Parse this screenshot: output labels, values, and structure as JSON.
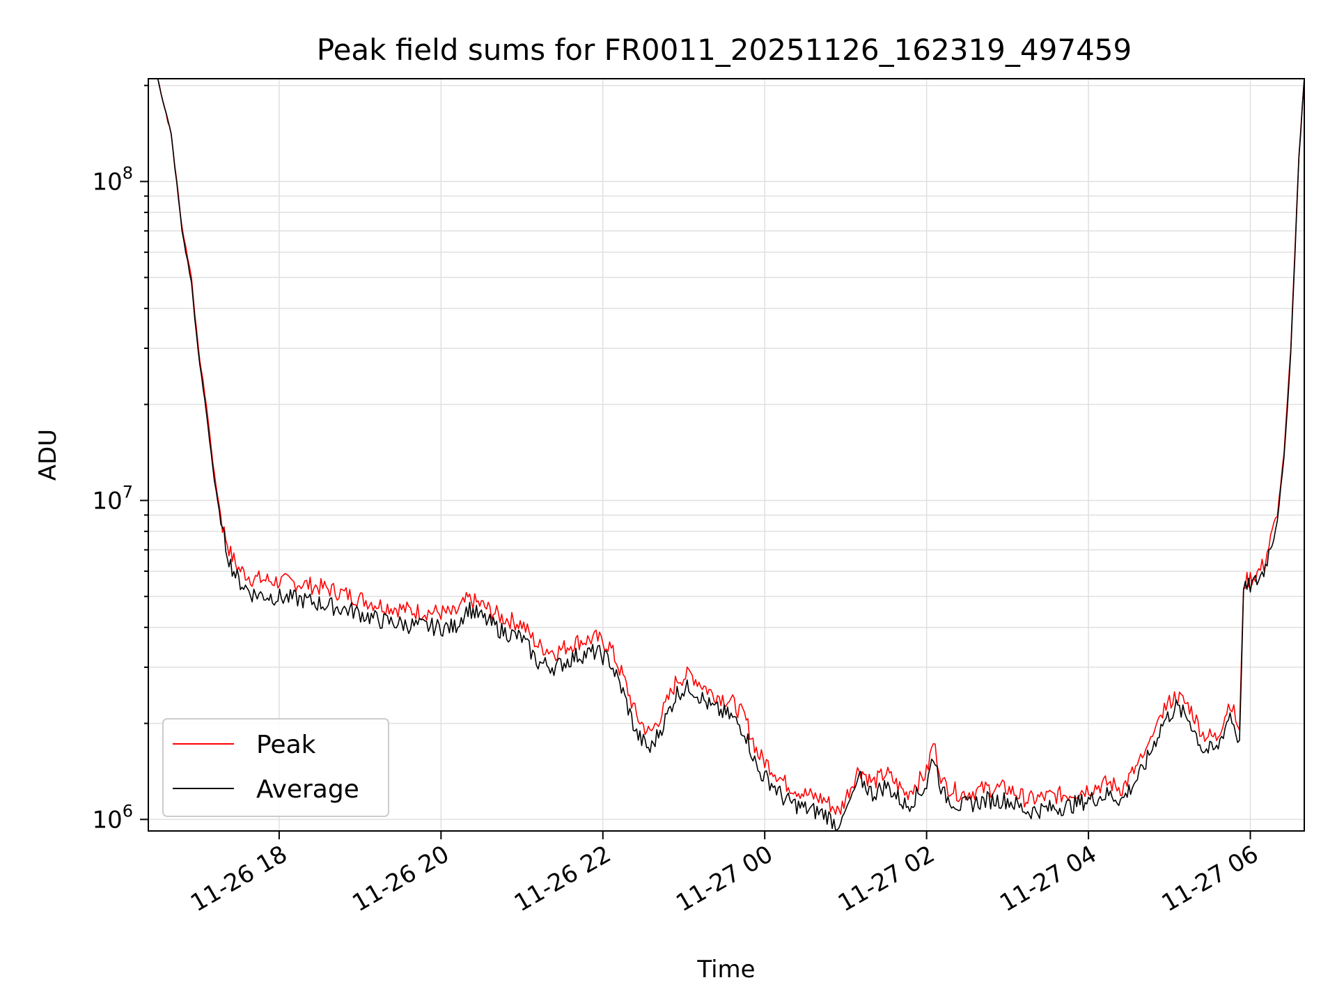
{
  "chart_data": {
    "type": "line",
    "title": "Peak field sums for FR0011_20251126_162319_497459",
    "xlabel": "Time",
    "ylabel": "ADU",
    "y_scale": "log",
    "xlim": [
      "2025-11-26 16:23",
      "2025-11-27 06:40"
    ],
    "ylim": [
      920000,
      210000000
    ],
    "grid": true,
    "legend_position": "lower-left",
    "x_ticks": [
      {
        "label": "11-26 18",
        "t": "2025-11-26 18:00"
      },
      {
        "label": "11-26 20",
        "t": "2025-11-26 20:00"
      },
      {
        "label": "11-26 22",
        "t": "2025-11-26 22:00"
      },
      {
        "label": "11-27 00",
        "t": "2025-11-27 00:00"
      },
      {
        "label": "11-27 02",
        "t": "2025-11-27 02:00"
      },
      {
        "label": "11-27 04",
        "t": "2025-11-27 04:00"
      },
      {
        "label": "11-27 06",
        "t": "2025-11-27 06:00"
      }
    ],
    "y_ticks": [
      {
        "base": "10",
        "exp": "6",
        "value": 1000000
      },
      {
        "base": "10",
        "exp": "7",
        "value": 10000000
      },
      {
        "base": "10",
        "exp": "8",
        "value": 100000000
      }
    ],
    "series": [
      {
        "name": "Peak",
        "color": "#ff0000",
        "points": [
          [
            "2025-11-26 16:30",
            210000000
          ],
          [
            "2025-11-26 16:40",
            140000000
          ],
          [
            "2025-11-26 16:48",
            72000000
          ],
          [
            "2025-11-26 16:55",
            50000000
          ],
          [
            "2025-11-26 17:00",
            30000000
          ],
          [
            "2025-11-26 17:06",
            20000000
          ],
          [
            "2025-11-26 17:12",
            12000000
          ],
          [
            "2025-11-26 17:18",
            8300000
          ],
          [
            "2025-11-26 17:24",
            6800000
          ],
          [
            "2025-11-26 17:30",
            6100000
          ],
          [
            "2025-11-26 17:40",
            5700000
          ],
          [
            "2025-11-26 17:55",
            5600000
          ],
          [
            "2025-11-26 18:15",
            5500000
          ],
          [
            "2025-11-26 18:35",
            5300000
          ],
          [
            "2025-11-26 18:55",
            5000000
          ],
          [
            "2025-11-26 19:15",
            4700000
          ],
          [
            "2025-11-26 19:40",
            4500000
          ],
          [
            "2025-11-26 20:00",
            4450000
          ],
          [
            "2025-11-26 20:10",
            4400000
          ],
          [
            "2025-11-26 20:20",
            4900000
          ],
          [
            "2025-11-26 20:30",
            4700000
          ],
          [
            "2025-11-26 20:45",
            4300000
          ],
          [
            "2025-11-26 21:00",
            4100000
          ],
          [
            "2025-11-26 21:12",
            3500000
          ],
          [
            "2025-11-26 21:25",
            3350000
          ],
          [
            "2025-11-26 21:40",
            3600000
          ],
          [
            "2025-11-26 21:55",
            3700000
          ],
          [
            "2025-11-26 22:05",
            3500000
          ],
          [
            "2025-11-26 22:15",
            2800000
          ],
          [
            "2025-11-26 22:25",
            2100000
          ],
          [
            "2025-11-26 22:35",
            1850000
          ],
          [
            "2025-11-26 22:45",
            2200000
          ],
          [
            "2025-11-26 22:55",
            2750000
          ],
          [
            "2025-11-26 23:05",
            2850000
          ],
          [
            "2025-11-26 23:20",
            2500000
          ],
          [
            "2025-11-26 23:35",
            2350000
          ],
          [
            "2025-11-26 23:45",
            2100000
          ],
          [
            "2025-11-26 23:55",
            1600000
          ],
          [
            "2025-11-27 00:05",
            1450000
          ],
          [
            "2025-11-27 00:15",
            1300000
          ],
          [
            "2025-11-27 00:30",
            1200000
          ],
          [
            "2025-11-27 00:45",
            1150000
          ],
          [
            "2025-11-27 00:55",
            1050000
          ],
          [
            "2025-11-27 01:10",
            1450000
          ],
          [
            "2025-11-27 01:20",
            1300000
          ],
          [
            "2025-11-27 01:30",
            1400000
          ],
          [
            "2025-11-27 01:45",
            1200000
          ],
          [
            "2025-11-27 02:00",
            1400000
          ],
          [
            "2025-11-27 02:05",
            1750000
          ],
          [
            "2025-11-27 02:12",
            1300000
          ],
          [
            "2025-11-27 02:25",
            1200000
          ],
          [
            "2025-11-27 02:45",
            1250000
          ],
          [
            "2025-11-27 03:00",
            1250000
          ],
          [
            "2025-11-27 03:15",
            1150000
          ],
          [
            "2025-11-27 03:30",
            1180000
          ],
          [
            "2025-11-27 03:45",
            1200000
          ],
          [
            "2025-11-27 04:00",
            1250000
          ],
          [
            "2025-11-27 04:15",
            1300000
          ],
          [
            "2025-11-27 04:25",
            1250000
          ],
          [
            "2025-11-27 04:40",
            1550000
          ],
          [
            "2025-11-27 04:55",
            2200000
          ],
          [
            "2025-11-27 05:05",
            2450000
          ],
          [
            "2025-11-27 05:15",
            2250000
          ],
          [
            "2025-11-27 05:25",
            1850000
          ],
          [
            "2025-11-27 05:35",
            1800000
          ],
          [
            "2025-11-27 05:45",
            2350000
          ],
          [
            "2025-11-27 05:52",
            1900000
          ],
          [
            "2025-11-27 05:55",
            5500000
          ],
          [
            "2025-11-27 06:00",
            5700000
          ],
          [
            "2025-11-27 06:05",
            5900000
          ],
          [
            "2025-11-27 06:10",
            6300000
          ],
          [
            "2025-11-27 06:15",
            7500000
          ],
          [
            "2025-11-27 06:20",
            9000000
          ],
          [
            "2025-11-27 06:25",
            14000000
          ],
          [
            "2025-11-27 06:30",
            30000000
          ],
          [
            "2025-11-27 06:33",
            60000000
          ],
          [
            "2025-11-27 06:36",
            120000000
          ],
          [
            "2025-11-27 06:40",
            210000000
          ]
        ]
      },
      {
        "name": "Average",
        "color": "#000000",
        "points": [
          [
            "2025-11-26 16:30",
            210000000
          ],
          [
            "2025-11-26 16:40",
            140000000
          ],
          [
            "2025-11-26 16:48",
            70000000
          ],
          [
            "2025-11-26 16:55",
            48000000
          ],
          [
            "2025-11-26 17:00",
            29000000
          ],
          [
            "2025-11-26 17:06",
            19000000
          ],
          [
            "2025-11-26 17:12",
            11500000
          ],
          [
            "2025-11-26 17:18",
            7900000
          ],
          [
            "2025-11-26 17:24",
            6300000
          ],
          [
            "2025-11-26 17:30",
            5600000
          ],
          [
            "2025-11-26 17:40",
            5100000
          ],
          [
            "2025-11-26 17:55",
            5000000
          ],
          [
            "2025-11-26 18:15",
            4900000
          ],
          [
            "2025-11-26 18:35",
            4700000
          ],
          [
            "2025-11-26 18:55",
            4500000
          ],
          [
            "2025-11-26 19:15",
            4200000
          ],
          [
            "2025-11-26 19:40",
            4050000
          ],
          [
            "2025-11-26 20:00",
            4000000
          ],
          [
            "2025-11-26 20:10",
            4000000
          ],
          [
            "2025-11-26 20:20",
            4600000
          ],
          [
            "2025-11-26 20:30",
            4300000
          ],
          [
            "2025-11-26 20:45",
            3900000
          ],
          [
            "2025-11-26 21:00",
            3700000
          ],
          [
            "2025-11-26 21:12",
            3100000
          ],
          [
            "2025-11-26 21:25",
            3000000
          ],
          [
            "2025-11-26 21:40",
            3250000
          ],
          [
            "2025-11-26 21:55",
            3350000
          ],
          [
            "2025-11-26 22:05",
            3150000
          ],
          [
            "2025-11-26 22:15",
            2500000
          ],
          [
            "2025-11-26 22:25",
            1850000
          ],
          [
            "2025-11-26 22:35",
            1650000
          ],
          [
            "2025-11-26 22:45",
            2000000
          ],
          [
            "2025-11-26 22:55",
            2500000
          ],
          [
            "2025-11-26 23:05",
            2600000
          ],
          [
            "2025-11-26 23:20",
            2250000
          ],
          [
            "2025-11-26 23:35",
            2100000
          ],
          [
            "2025-11-26 23:45",
            1900000
          ],
          [
            "2025-11-26 23:55",
            1420000
          ],
          [
            "2025-11-27 00:05",
            1300000
          ],
          [
            "2025-11-27 00:15",
            1150000
          ],
          [
            "2025-11-27 00:30",
            1080000
          ],
          [
            "2025-11-27 00:45",
            1040000
          ],
          [
            "2025-11-27 00:55",
            950000
          ],
          [
            "2025-11-27 01:10",
            1350000
          ],
          [
            "2025-11-27 01:20",
            1200000
          ],
          [
            "2025-11-27 01:30",
            1280000
          ],
          [
            "2025-11-27 01:45",
            1100000
          ],
          [
            "2025-11-27 02:00",
            1280000
          ],
          [
            "2025-11-27 02:05",
            1600000
          ],
          [
            "2025-11-27 02:12",
            1200000
          ],
          [
            "2025-11-27 02:25",
            1100000
          ],
          [
            "2025-11-27 02:45",
            1150000
          ],
          [
            "2025-11-27 03:00",
            1150000
          ],
          [
            "2025-11-27 03:15",
            1060000
          ],
          [
            "2025-11-27 03:30",
            1080000
          ],
          [
            "2025-11-27 03:45",
            1100000
          ],
          [
            "2025-11-27 04:00",
            1150000
          ],
          [
            "2025-11-27 04:15",
            1200000
          ],
          [
            "2025-11-27 04:25",
            1150000
          ],
          [
            "2025-11-27 04:40",
            1420000
          ],
          [
            "2025-11-27 04:55",
            2000000
          ],
          [
            "2025-11-27 05:05",
            2250000
          ],
          [
            "2025-11-27 05:15",
            2050000
          ],
          [
            "2025-11-27 05:25",
            1650000
          ],
          [
            "2025-11-27 05:35",
            1650000
          ],
          [
            "2025-11-27 05:45",
            2150000
          ],
          [
            "2025-11-27 05:52",
            1750000
          ],
          [
            "2025-11-27 05:55",
            5200000
          ],
          [
            "2025-11-27 06:00",
            5400000
          ],
          [
            "2025-11-27 06:05",
            5600000
          ],
          [
            "2025-11-27 06:10",
            6000000
          ],
          [
            "2025-11-27 06:15",
            7200000
          ],
          [
            "2025-11-27 06:20",
            8700000
          ],
          [
            "2025-11-27 06:25",
            13500000
          ],
          [
            "2025-11-27 06:30",
            29000000
          ],
          [
            "2025-11-27 06:33",
            58000000
          ],
          [
            "2025-11-27 06:36",
            118000000
          ],
          [
            "2025-11-27 06:40",
            210000000
          ]
        ]
      }
    ]
  }
}
